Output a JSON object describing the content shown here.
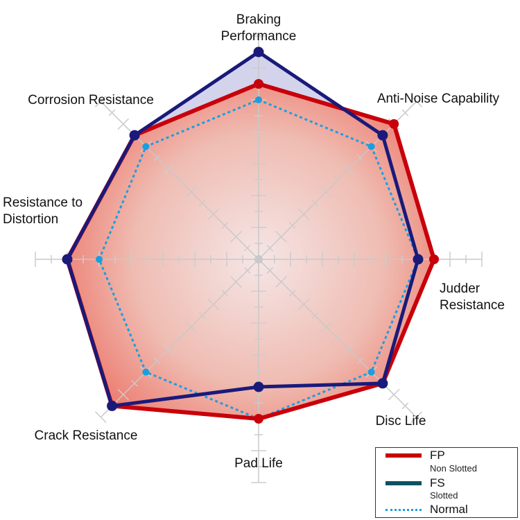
{
  "chart_data": {
    "type": "radar",
    "axes": [
      "Braking Performance",
      "Anti-Noise Capability",
      "Judder Resistance",
      "Disc Life",
      "Pad Life",
      "Crack Resistance",
      "Resistance to Distortion",
      "Corrosion Resistance"
    ],
    "axis_label_lines": [
      [
        "Braking",
        "Performance"
      ],
      [
        "Anti-Noise Capability"
      ],
      [
        "Judder",
        "Resistance"
      ],
      [
        "Disc Life"
      ],
      [
        "Pad Life"
      ],
      [
        "Crack Resistance"
      ],
      [
        "Resistance to",
        "Distortion"
      ],
      [
        "Corrosion Resistance"
      ]
    ],
    "range": [
      0,
      7
    ],
    "tick_step": 0.5,
    "series": [
      {
        "name": "FP",
        "subtitle": "Non Slotted",
        "color": "#c8000a",
        "values": [
          5.5,
          6.0,
          5.5,
          5.5,
          5.0,
          6.5,
          6.0,
          5.5
        ]
      },
      {
        "name": "FS",
        "subtitle": "Slotted",
        "color": "#1a1a7a",
        "legend_color": "#0a5262",
        "values": [
          6.5,
          5.5,
          5.0,
          5.5,
          4.0,
          6.5,
          6.0,
          5.5
        ]
      },
      {
        "name": "Normal",
        "color": "#1a9ee0",
        "style": "dotted",
        "values": [
          5.0,
          5.0,
          5.0,
          5.0,
          5.0,
          5.0,
          5.0,
          5.0
        ]
      }
    ],
    "legend_placement": "bottom-right"
  }
}
